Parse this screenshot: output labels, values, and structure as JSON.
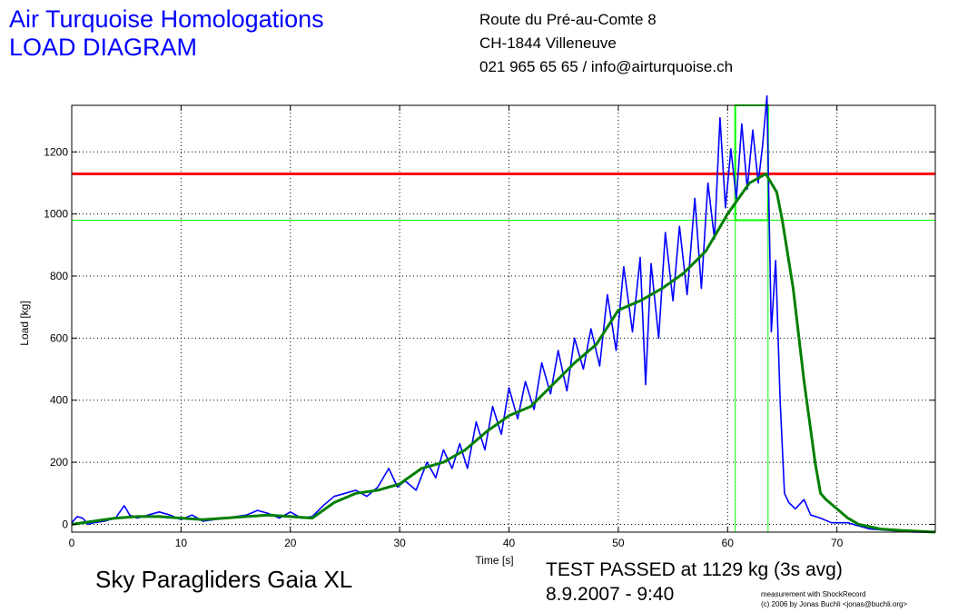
{
  "header": {
    "org_name": "Air Turquoise Homologations",
    "diagram_title": "LOAD DIAGRAM",
    "address_line1": "Route du Pré-au-Comte 8",
    "address_line2": "CH-1844 Villeneuve",
    "contact": "021 965 65 65 / info@airturquoise.ch"
  },
  "footer": {
    "glider": "Sky Paragliders Gaia XL",
    "result": "TEST PASSED at 1129 kg (3s avg)",
    "datetime": "8.9.2007 - 9:40",
    "credit_line1": "measurement with ShockRecord",
    "credit_line2": "(c) 2006 by Jonas Buchli <jonas@buchli.org>"
  },
  "colors": {
    "raw_load": "#0000ff",
    "avg_load": "#007f00",
    "limit_line": "#ff0000",
    "window_box": "#00ff00",
    "grid": "#000000"
  },
  "chart_data": {
    "type": "line",
    "title": "",
    "xlabel": "Time [s]",
    "ylabel": "Load [kg]",
    "xlim": [
      0,
      79
    ],
    "ylim": [
      -25,
      1350
    ],
    "xticks": [
      0,
      10,
      20,
      30,
      40,
      50,
      60,
      70
    ],
    "yticks": [
      0,
      200,
      400,
      600,
      800,
      1000,
      1200
    ],
    "grid": true,
    "reference_lines": [
      {
        "type": "horizontal",
        "y": 1129,
        "color": "#ff0000"
      },
      {
        "type": "horizontal",
        "y": 980,
        "color": "#00ff00"
      },
      {
        "type": "vertical",
        "x": 60.7,
        "color": "#00ff00"
      },
      {
        "type": "vertical",
        "x": 63.7,
        "color": "#00ff00"
      }
    ],
    "window_box": {
      "x0": 60.7,
      "x1": 63.7,
      "y0": 980,
      "y1": 1350
    },
    "series": [
      {
        "color": "#0000ff",
        "points": [
          [
            0,
            5
          ],
          [
            0.5,
            25
          ],
          [
            1,
            20
          ],
          [
            1.5,
            0
          ],
          [
            2,
            5
          ],
          [
            3,
            10
          ],
          [
            4,
            20
          ],
          [
            4.8,
            60
          ],
          [
            5.3,
            30
          ],
          [
            6,
            20
          ],
          [
            7,
            30
          ],
          [
            8,
            40
          ],
          [
            9,
            30
          ],
          [
            10,
            15
          ],
          [
            11,
            30
          ],
          [
            12,
            10
          ],
          [
            13,
            15
          ],
          [
            14,
            20
          ],
          [
            15,
            25
          ],
          [
            16,
            30
          ],
          [
            17,
            45
          ],
          [
            18,
            35
          ],
          [
            19,
            20
          ],
          [
            20,
            40
          ],
          [
            21,
            20
          ],
          [
            22,
            25
          ],
          [
            23,
            60
          ],
          [
            24,
            90
          ],
          [
            25,
            100
          ],
          [
            26,
            110
          ],
          [
            27,
            90
          ],
          [
            28,
            120
          ],
          [
            29,
            180
          ],
          [
            29.8,
            120
          ],
          [
            30.5,
            140
          ],
          [
            31.5,
            110
          ],
          [
            32.5,
            200
          ],
          [
            33.3,
            150
          ],
          [
            34,
            240
          ],
          [
            34.8,
            180
          ],
          [
            35.5,
            260
          ],
          [
            36.2,
            180
          ],
          [
            37,
            330
          ],
          [
            37.8,
            240
          ],
          [
            38.5,
            380
          ],
          [
            39.3,
            290
          ],
          [
            40,
            440
          ],
          [
            40.8,
            340
          ],
          [
            41.5,
            460
          ],
          [
            42.3,
            370
          ],
          [
            43,
            520
          ],
          [
            43.8,
            420
          ],
          [
            44.5,
            560
          ],
          [
            45.3,
            430
          ],
          [
            46,
            600
          ],
          [
            46.8,
            500
          ],
          [
            47.5,
            630
          ],
          [
            48.3,
            510
          ],
          [
            49,
            740
          ],
          [
            49.8,
            560
          ],
          [
            50.5,
            830
          ],
          [
            51.3,
            620
          ],
          [
            52,
            860
          ],
          [
            52.5,
            450
          ],
          [
            53,
            840
          ],
          [
            53.7,
            600
          ],
          [
            54.3,
            940
          ],
          [
            55,
            720
          ],
          [
            55.6,
            960
          ],
          [
            56.3,
            740
          ],
          [
            57,
            1050
          ],
          [
            57.6,
            760
          ],
          [
            58.2,
            1100
          ],
          [
            58.8,
            920
          ],
          [
            59.3,
            1310
          ],
          [
            59.8,
            1020
          ],
          [
            60.3,
            1210
          ],
          [
            60.8,
            1050
          ],
          [
            61.3,
            1290
          ],
          [
            61.8,
            1080
          ],
          [
            62.3,
            1270
          ],
          [
            62.8,
            1100
          ],
          [
            63.2,
            1220
          ],
          [
            63.6,
            1380
          ],
          [
            64,
            620
          ],
          [
            64.4,
            850
          ],
          [
            64.8,
            400
          ],
          [
            65.2,
            100
          ],
          [
            65.6,
            70
          ],
          [
            66.2,
            50
          ],
          [
            67,
            80
          ],
          [
            67.6,
            30
          ],
          [
            68.5,
            20
          ],
          [
            69.5,
            5
          ],
          [
            71,
            5
          ],
          [
            73,
            -15
          ],
          [
            75,
            -20
          ],
          [
            77,
            -25
          ],
          [
            79,
            -25
          ]
        ]
      },
      {
        "color": "#007f00",
        "points": [
          [
            0,
            0
          ],
          [
            2,
            10
          ],
          [
            4,
            20
          ],
          [
            6,
            25
          ],
          [
            8,
            25
          ],
          [
            10,
            20
          ],
          [
            12,
            15
          ],
          [
            14,
            20
          ],
          [
            16,
            25
          ],
          [
            18,
            30
          ],
          [
            20,
            25
          ],
          [
            22,
            20
          ],
          [
            24,
            70
          ],
          [
            26,
            100
          ],
          [
            28,
            110
          ],
          [
            30,
            130
          ],
          [
            32,
            180
          ],
          [
            34,
            200
          ],
          [
            36,
            240
          ],
          [
            38,
            300
          ],
          [
            40,
            350
          ],
          [
            42,
            380
          ],
          [
            44,
            450
          ],
          [
            46,
            520
          ],
          [
            48,
            580
          ],
          [
            50,
            690
          ],
          [
            52,
            720
          ],
          [
            54,
            760
          ],
          [
            56,
            810
          ],
          [
            58,
            880
          ],
          [
            60,
            1000
          ],
          [
            62,
            1100
          ],
          [
            63.5,
            1129
          ],
          [
            64.5,
            1070
          ],
          [
            65,
            980
          ],
          [
            66,
            760
          ],
          [
            67,
            460
          ],
          [
            67.5,
            330
          ],
          [
            68,
            200
          ],
          [
            68.5,
            100
          ],
          [
            69,
            80
          ],
          [
            70,
            50
          ],
          [
            71,
            20
          ],
          [
            72,
            0
          ],
          [
            74,
            -15
          ],
          [
            76,
            -20
          ],
          [
            79,
            -25
          ]
        ]
      }
    ]
  }
}
